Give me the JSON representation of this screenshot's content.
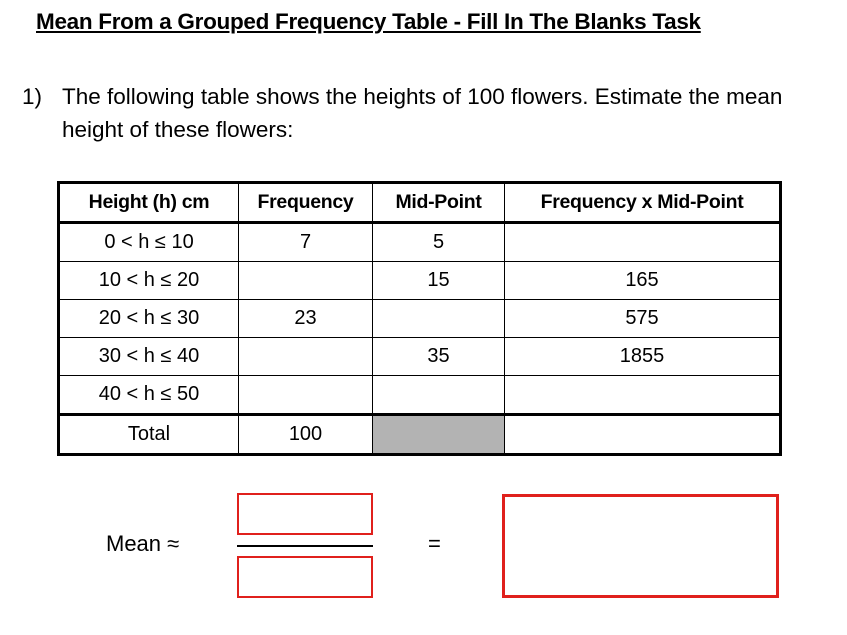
{
  "title": "Mean From a Grouped Frequency Table - Fill In The Blanks Task",
  "question": {
    "number": "1)",
    "text": "The following table shows the heights of 100 flowers.  Estimate the mean height of these flowers:"
  },
  "table": {
    "headers": [
      "Height (h) cm",
      "Frequency",
      "Mid-Point",
      "Frequency x Mid-Point"
    ],
    "rows": [
      [
        "0 < h ≤ 10",
        "7",
        "5",
        ""
      ],
      [
        "10 < h ≤ 20",
        "",
        "15",
        "165"
      ],
      [
        "20 < h ≤ 30",
        "23",
        "",
        "575"
      ],
      [
        "30 < h ≤ 40",
        "",
        "35",
        "1855"
      ],
      [
        "40 < h ≤ 50",
        "",
        "",
        ""
      ]
    ],
    "total": [
      "Total",
      "100",
      "",
      ""
    ]
  },
  "mean": {
    "label": "Mean ≈",
    "equals": "="
  },
  "colors": {
    "answer_box_border": "#e0201c",
    "shaded_cell": "#b3b3b3"
  }
}
